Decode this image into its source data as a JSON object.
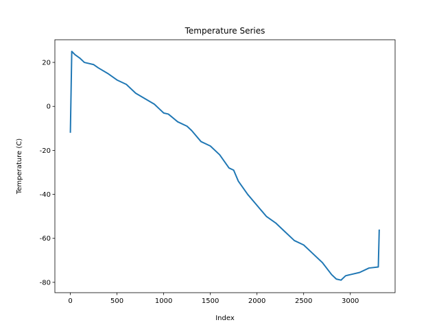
{
  "chart_data": {
    "type": "line",
    "title": "Temperature Series",
    "x_label": "Index",
    "y_label": "Temperature (C)",
    "x": [
      0,
      15,
      50,
      100,
      150,
      250,
      300,
      400,
      500,
      600,
      700,
      800,
      900,
      950,
      1000,
      1050,
      1150,
      1250,
      1300,
      1400,
      1500,
      1600,
      1700,
      1750,
      1800,
      1900,
      2000,
      2100,
      2200,
      2300,
      2400,
      2500,
      2600,
      2700,
      2800,
      2850,
      2900,
      2950,
      3000,
      3100,
      3200,
      3300,
      3310
    ],
    "series": [
      {
        "name": "Temperature",
        "color": "#1f77b4",
        "values": [
          -12,
          25,
          23.5,
          22,
          20,
          19,
          17.5,
          15,
          12,
          10,
          6,
          3.5,
          1,
          -1,
          -3,
          -3.5,
          -7,
          -9,
          -11,
          -16,
          -18,
          -22,
          -28,
          -29,
          -34,
          -40,
          -45,
          -50,
          -53,
          -57,
          -61,
          -63,
          -67,
          -71,
          -76.5,
          -78.5,
          -79,
          -77,
          -76.5,
          -75.5,
          -73.5,
          -73,
          -56
        ]
      }
    ],
    "xlim": [
      -166,
      3480
    ],
    "ylim": [
      -84.7,
      30.3
    ],
    "xticks": [
      0,
      500,
      1000,
      1500,
      2000,
      2500,
      3000
    ],
    "yticks": [
      -80,
      -60,
      -40,
      -20,
      0,
      20
    ]
  }
}
